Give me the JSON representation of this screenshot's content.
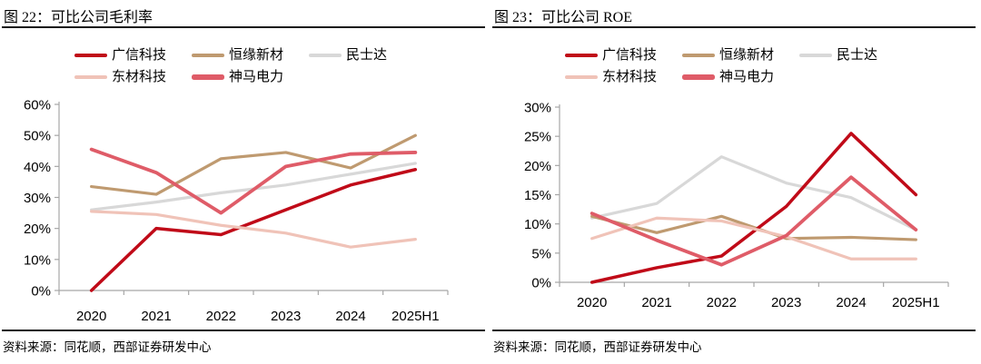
{
  "page": {
    "background": "#ffffff",
    "text_color": "#000000",
    "rule_color": "#141414"
  },
  "panels": [
    {
      "title": "图 22：可比公司毛利率",
      "source": "资料来源：同花顺，西部证券研发中心",
      "chart_data": {
        "type": "line",
        "title": "可比公司毛利率",
        "xlabel": "",
        "ylabel": "",
        "grid": false,
        "legend_position": "top",
        "axis_color": "#a6a6a6",
        "categories": [
          "2020",
          "2021",
          "2022",
          "2023",
          "2024",
          "2025H1"
        ],
        "ylim": [
          0,
          60
        ],
        "ytick_step": 10,
        "ytick_labels": [
          "0%",
          "10%",
          "20%",
          "30%",
          "40%",
          "50%",
          "60%"
        ],
        "unit": "percent",
        "series": [
          {
            "name": "广信科技",
            "color": "#c00a18",
            "line_width": 3.5,
            "values": [
              0,
              20,
              18,
              26,
              34,
              39
            ]
          },
          {
            "name": "恒缘新材",
            "color": "#bf9a70",
            "line_width": 3.2,
            "values": [
              33.5,
              31,
              42.5,
              44.5,
              39.5,
              50
            ]
          },
          {
            "name": "民士达",
            "color": "#d8d8d8",
            "line_width": 3.2,
            "values": [
              26,
              28.5,
              31.5,
              34,
              37.5,
              41
            ]
          },
          {
            "name": "东材科技",
            "color": "#f0c3b8",
            "line_width": 3.2,
            "values": [
              25.5,
              24.5,
              21,
              18.5,
              14,
              16.5
            ]
          },
          {
            "name": "神马电力",
            "color": "#df5c68",
            "line_width": 3.8,
            "values": [
              45.5,
              38,
              25,
              40,
              44,
              44.5
            ]
          }
        ],
        "draw_order": [
          2,
          1,
          0,
          3,
          4
        ]
      }
    },
    {
      "title": "图 23：可比公司 ROE",
      "source": "资料来源：同花顺，西部证券研发中心",
      "chart_data": {
        "type": "line",
        "title": "可比公司 ROE",
        "xlabel": "",
        "ylabel": "",
        "grid": false,
        "legend_position": "top",
        "axis_color": "#a6a6a6",
        "categories": [
          "2020",
          "2021",
          "2022",
          "2023",
          "2024",
          "2025H1"
        ],
        "ylim": [
          0,
          30
        ],
        "ytick_step": 5,
        "ytick_labels": [
          "0%",
          "5%",
          "10%",
          "15%",
          "20%",
          "25%",
          "30%"
        ],
        "unit": "percent",
        "series": [
          {
            "name": "广信科技",
            "color": "#c00a18",
            "line_width": 3.5,
            "values": [
              0,
              2.5,
              4.5,
              13,
              25.5,
              15
            ]
          },
          {
            "name": "恒缘新材",
            "color": "#bf9a70",
            "line_width": 3.2,
            "values": [
              11.3,
              8.5,
              11.3,
              7.5,
              7.7,
              7.3
            ]
          },
          {
            "name": "民士达",
            "color": "#d8d8d8",
            "line_width": 3.2,
            "values": [
              11,
              13.5,
              21.5,
              17,
              14.5,
              9
            ]
          },
          {
            "name": "东材科技",
            "color": "#f0c3b8",
            "line_width": 3.2,
            "values": [
              7.5,
              11,
              10.5,
              7.8,
              4,
              4
            ]
          },
          {
            "name": "神马电力",
            "color": "#df5c68",
            "line_width": 3.8,
            "values": [
              11.8,
              7.2,
              3,
              8,
              18,
              9
            ]
          }
        ],
        "draw_order": [
          2,
          1,
          0,
          3,
          4
        ]
      }
    }
  ]
}
